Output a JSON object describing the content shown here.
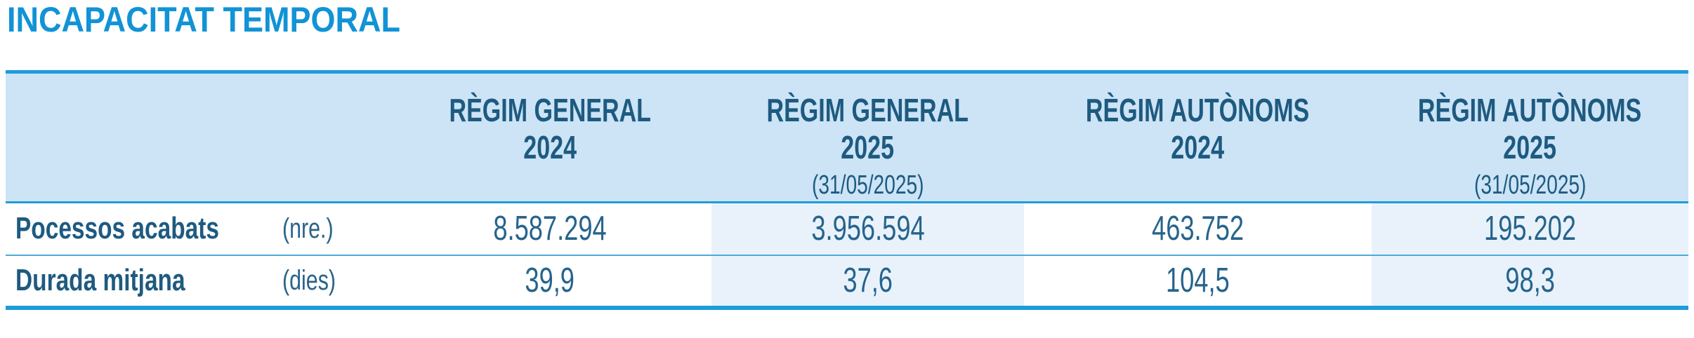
{
  "title": "INCAPACITAT TEMPORAL",
  "colors": {
    "title_blue": "#1193D6",
    "accent_blue": "#1E9CD9",
    "header_bg": "#CCE4F6",
    "highlight_column_bg": "#E9F2FB",
    "header_text": "#1E5A80",
    "value_text": "#26648C",
    "row_separator": "#4FA8DA"
  },
  "table": {
    "columns": [
      {
        "line1": "RÈGIM GENERAL",
        "line2": "2024",
        "sublabel": "",
        "highlighted": false
      },
      {
        "line1": "RÈGIM GENERAL",
        "line2": "2025",
        "sublabel": "(31/05/2025)",
        "highlighted": true
      },
      {
        "line1": "RÈGIM AUTÒNOMS",
        "line2": "2024",
        "sublabel": "",
        "highlighted": false
      },
      {
        "line1": "RÈGIM AUTÒNOMS",
        "line2": "2025",
        "sublabel": "(31/05/2025)",
        "highlighted": true
      }
    ],
    "rows": [
      {
        "label": "Pocessos acabats",
        "unit": "(nre.)",
        "values": [
          "8.587.294",
          "3.956.594",
          "463.752",
          "195.202"
        ]
      },
      {
        "label": "Durada mitjana",
        "unit": "(dies)",
        "values": [
          "39,9",
          "37,6",
          "104,5",
          "98,3"
        ]
      }
    ]
  },
  "chart_data": {
    "type": "table",
    "title": "INCAPACITAT TEMPORAL",
    "columns": [
      "RÈGIM GENERAL 2024",
      "RÈGIM GENERAL 2025 (31/05/2025)",
      "RÈGIM AUTÒNOMS 2024",
      "RÈGIM AUTÒNOMS 2025 (31/05/2025)"
    ],
    "rows": [
      {
        "metric": "Pocessos acabats",
        "unit": "nre.",
        "values": [
          8587294,
          3956594,
          463752,
          195202
        ]
      },
      {
        "metric": "Durada mitjana",
        "unit": "dies",
        "values": [
          39.9,
          37.6,
          104.5,
          98.3
        ]
      }
    ]
  }
}
